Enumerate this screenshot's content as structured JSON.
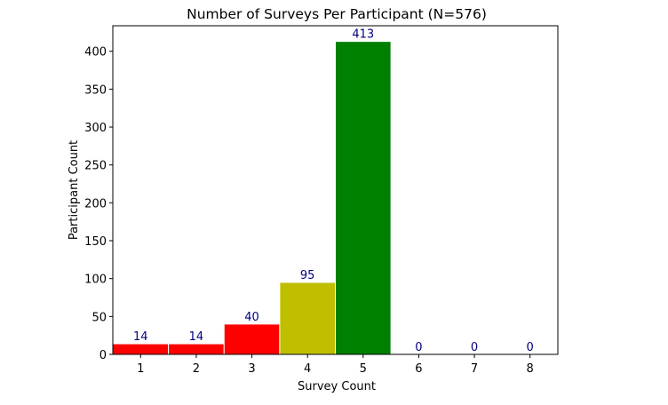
{
  "chart_data": {
    "type": "bar",
    "title": "Number of Surveys Per Participant (N=576)",
    "xlabel": "Survey Count",
    "ylabel": "Participant Count",
    "categories": [
      "1",
      "2",
      "3",
      "4",
      "5",
      "6",
      "7",
      "8"
    ],
    "values": [
      14,
      14,
      40,
      95,
      413,
      0,
      0,
      0
    ],
    "bar_colors": [
      "#ff0000",
      "#ff0000",
      "#ff0000",
      "#bfbf00",
      "#008000",
      "#ff0000",
      "#ff0000",
      "#ff0000"
    ],
    "bar_edge_color": "#ffffff",
    "data_label_color": "#00007f",
    "data_labels": [
      "14",
      "14",
      "40",
      "95",
      "413",
      "0",
      "0",
      "0"
    ],
    "xlim": [
      0.5,
      8.5
    ],
    "ylim": [
      0,
      433.65
    ],
    "yticks": [
      0,
      50,
      100,
      150,
      200,
      250,
      300,
      350,
      400
    ],
    "grid": false,
    "legend": null
  }
}
